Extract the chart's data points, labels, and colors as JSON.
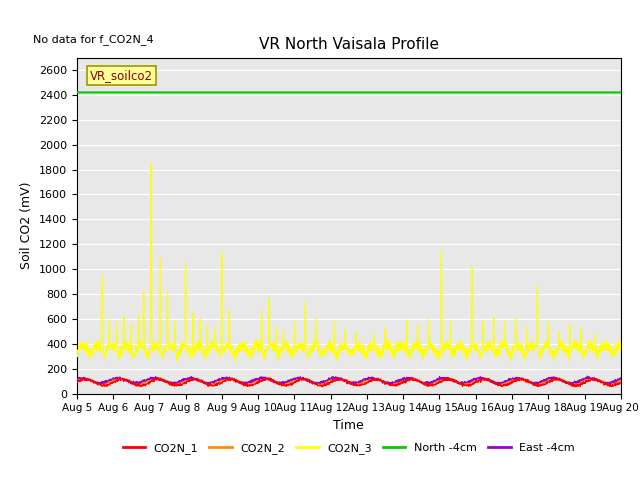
{
  "title": "VR North Vaisala Profile",
  "note": "No data for f_CO2N_4",
  "ylabel": "Soil CO2 (mV)",
  "xlabel": "Time",
  "ylim": [
    0,
    2700
  ],
  "yticks": [
    0,
    200,
    400,
    600,
    800,
    1000,
    1200,
    1400,
    1600,
    1800,
    2000,
    2200,
    2400,
    2600
  ],
  "xtick_labels": [
    "Aug 5",
    "Aug 6",
    "Aug 7",
    "Aug 8",
    "Aug 9",
    "Aug 10",
    "Aug 11",
    "Aug 12",
    "Aug 13",
    "Aug 14",
    "Aug 15",
    "Aug 16",
    "Aug 17",
    "Aug 18",
    "Aug 19",
    "Aug 20"
  ],
  "north_4cm_value": 2420,
  "legend_label_box": "VR_soilco2",
  "colors": {
    "CO2N_1": "#ff0000",
    "CO2N_2": "#ff8c00",
    "CO2N_3": "#ffff00",
    "North_4cm": "#00cc00",
    "East_4cm": "#9900cc"
  },
  "background_color": "#e8e8e8",
  "grid_color": "#ffffff"
}
